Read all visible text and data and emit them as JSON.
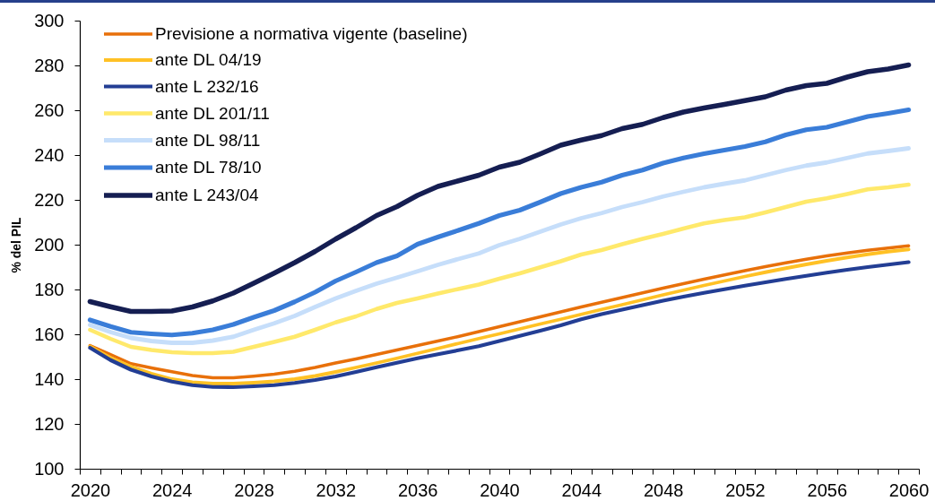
{
  "chart_data": {
    "type": "line",
    "categories": [
      "2020",
      null,
      null,
      null,
      "2024",
      null,
      null,
      null,
      "2028",
      null,
      null,
      null,
      "2032",
      null,
      null,
      null,
      "2036",
      null,
      null,
      null,
      "2040",
      null,
      null,
      null,
      "2044",
      null,
      null,
      null,
      "2048",
      null,
      null,
      null,
      "2052",
      null,
      null,
      null,
      "2056",
      null,
      null,
      null,
      "2060"
    ],
    "ylabel": "% del PIL",
    "ylim": [
      100,
      300
    ],
    "yticks": [
      100,
      120,
      140,
      160,
      180,
      200,
      220,
      240,
      260,
      280,
      300
    ],
    "legend": "top left",
    "line_style": "solid",
    "series": [
      {
        "name": "Previsione a normativa vigente (baseline)",
        "color": "#e8700a",
        "values": [
          155,
          151,
          146.9,
          145,
          143.3,
          141.6,
          140.6,
          140.6,
          141.3,
          142.2,
          143.5,
          145.2,
          147.2,
          149,
          151,
          153,
          155,
          157,
          159,
          161.2,
          163.4,
          165.6,
          167.8,
          170,
          172.2,
          174.3,
          176.4,
          178.5,
          180.6,
          182.6,
          184.6,
          186.5,
          188.4,
          190.2,
          191.9,
          193.5,
          195,
          196.3,
          197.5,
          198.5,
          199.5
        ]
      },
      {
        "name": "ante DL 04/19",
        "color": "#ffc125",
        "values": [
          154.6,
          149.5,
          145.6,
          142.5,
          140,
          138.6,
          138,
          138,
          138.4,
          139,
          140,
          141.4,
          143.2,
          145.2,
          147.2,
          149.3,
          151.5,
          153.7,
          155.9,
          158.1,
          160.2,
          162.4,
          164.6,
          166.7,
          168.9,
          171.1,
          173.2,
          175.4,
          177.6,
          179.7,
          181.8,
          183.8,
          185.8,
          187.7,
          189.5,
          191.2,
          192.8,
          194.3,
          195.7,
          196.9,
          197.9
        ]
      },
      {
        "name": "ante L 232/16",
        "color": "#233e94",
        "values": [
          154,
          148.5,
          144.2,
          141.2,
          138.9,
          137.3,
          136.5,
          136.4,
          136.8,
          137.3,
          138.3,
          139.6,
          141.2,
          143.2,
          145.3,
          147.3,
          149.3,
          151.1,
          152.9,
          154.7,
          157,
          159.3,
          161.6,
          164,
          166.7,
          169,
          171,
          173,
          175,
          176.8,
          178.5,
          180.1,
          181.7,
          183.2,
          184.7,
          186.1,
          187.5,
          188.8,
          190,
          191.1,
          192.2
        ]
      },
      {
        "name": "ante DL 201/11",
        "color": "#ffe96b",
        "values": [
          162,
          158,
          154.4,
          153,
          152,
          151.6,
          151.6,
          152.2,
          154.4,
          156.6,
          158.9,
          162,
          165.3,
          168,
          171.3,
          174,
          176,
          178.2,
          180.2,
          182.2,
          184.8,
          187.2,
          189.9,
          192.6,
          195.6,
          197.6,
          200.2,
          202.6,
          204.8,
          207.2,
          209.5,
          211,
          212.2,
          214.4,
          216.8,
          219.2,
          220.7,
          222.6,
          224.7,
          225.6,
          226.8
        ]
      },
      {
        "name": "ante DL 98/11",
        "color": "#c6defa",
        "values": [
          164.2,
          161,
          158.4,
          157,
          156.2,
          156.2,
          157.2,
          158.9,
          162,
          164.9,
          168.2,
          172.2,
          176,
          179.4,
          182.6,
          185.3,
          188.1,
          191,
          193.6,
          196.1,
          199.8,
          202.6,
          205.8,
          209,
          211.8,
          214.1,
          216.8,
          219,
          221.5,
          223.6,
          225.6,
          227.2,
          228.7,
          231,
          233.3,
          235.3,
          236.7,
          238.7,
          240.7,
          241.8,
          243
        ]
      },
      {
        "name": "ante DL 78/10",
        "color": "#3a7dd8",
        "values": [
          166.4,
          163.5,
          160.9,
          160.2,
          159.7,
          160.5,
          162,
          164.4,
          167.6,
          170.6,
          174.5,
          178.8,
          183.8,
          187.8,
          192,
          195,
          200.2,
          203.4,
          206.4,
          209.5,
          213,
          215.4,
          219,
          222.8,
          225.6,
          227.9,
          231,
          233.3,
          236.4,
          238.7,
          240.6,
          242.2,
          243.8,
          245.9,
          249,
          251.3,
          252.4,
          254.8,
          257.2,
          258.6,
          260.2
        ]
      },
      {
        "name": "ante L 243/04",
        "color": "#151e52",
        "values": [
          174.6,
          172.3,
          170.2,
          170.2,
          170.4,
          172.2,
          174.9,
          178.4,
          182.8,
          187.3,
          192,
          197,
          202.5,
          207.6,
          213,
          217,
          222,
          226,
          228.5,
          231,
          234.6,
          236.8,
          240.5,
          244.4,
          246.7,
          248.7,
          251.8,
          253.7,
          256.7,
          259.2,
          261,
          262.6,
          264.3,
          266,
          269,
          271,
          272,
          274.8,
          277.2,
          278.4,
          280.2
        ]
      }
    ]
  }
}
